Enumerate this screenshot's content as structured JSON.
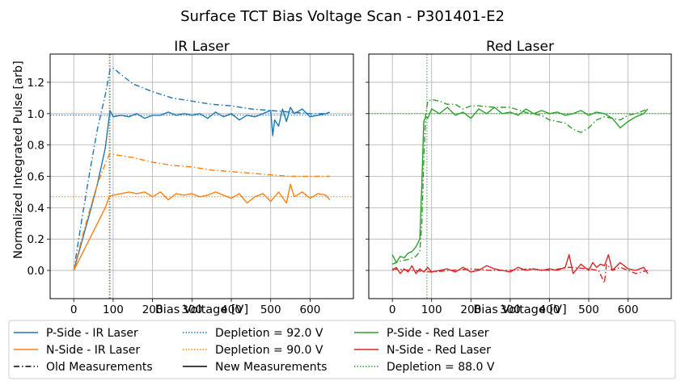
{
  "suptitle": "Surface TCT Bias Voltage Scan - P301401-E2",
  "ylabel": "Normalized Integrated Pulse [arb]",
  "colors": {
    "blue": "#1f77b4",
    "orange": "#ff7f0e",
    "green": "#2ca02c",
    "red": "#d62728",
    "black": "#000000",
    "grid": "#b0b0b0"
  },
  "legend": [
    {
      "label": "P-Side - IR Laser",
      "color": "#1f77b4",
      "style": "solid"
    },
    {
      "label": "N-Side - IR Laser",
      "color": "#ff7f0e",
      "style": "solid"
    },
    {
      "label": "Old Measurements",
      "color": "#000000",
      "style": "dashdot"
    },
    {
      "label": "Depletion = 92.0 V",
      "color": "#1f77b4",
      "style": "dotted"
    },
    {
      "label": "Depletion = 90.0 V",
      "color": "#ff7f0e",
      "style": "dotted"
    },
    {
      "label": "New Measurements",
      "color": "#000000",
      "style": "solid"
    },
    {
      "label": "P-Side - Red Laser",
      "color": "#2ca02c",
      "style": "solid"
    },
    {
      "label": "N-Side - Red Laser",
      "color": "#d62728",
      "style": "solid"
    },
    {
      "label": "Depletion = 88.0 V",
      "color": "#2ca02c",
      "style": "dotted"
    }
  ],
  "chart_data": [
    {
      "type": "line",
      "title": "IR Laser",
      "xlabel": "Bias Voltage [V]",
      "ylabel": "Normalized Integrated Pulse [arb]",
      "xlim": [
        -60,
        710
      ],
      "ylim": [
        -0.18,
        1.38
      ],
      "xticks": [
        0,
        100,
        200,
        300,
        400,
        500,
        600
      ],
      "yticks": [
        0.0,
        0.2,
        0.4,
        0.6,
        0.8,
        1.0,
        1.2
      ],
      "grid": true,
      "vlines": [
        {
          "x": 92,
          "color": "#1f77b4",
          "label": "Depletion = 92.0 V"
        },
        {
          "x": 90,
          "color": "#ff7f0e",
          "label": "Depletion = 90.0 V"
        }
      ],
      "hlines": [
        {
          "y": 0.99,
          "color": "#1f77b4"
        },
        {
          "y": 0.47,
          "color": "#ff7f0e"
        }
      ],
      "series": [
        {
          "name": "P-Side - IR Laser (old)",
          "color": "#1f77b4",
          "style": "dashdot",
          "x": [
            0,
            20,
            40,
            60,
            80,
            92,
            100,
            120,
            150,
            200,
            250,
            300,
            350,
            400,
            450,
            500,
            550,
            600,
            650
          ],
          "y": [
            0.0,
            0.32,
            0.62,
            0.9,
            1.12,
            1.28,
            1.29,
            1.25,
            1.19,
            1.14,
            1.1,
            1.08,
            1.06,
            1.05,
            1.03,
            1.02,
            1.01,
            1.0,
            1.0
          ]
        },
        {
          "name": "P-Side - IR Laser (new)",
          "color": "#1f77b4",
          "style": "solid",
          "x": [
            0,
            20,
            40,
            60,
            80,
            92,
            100,
            120,
            140,
            160,
            180,
            200,
            220,
            240,
            260,
            280,
            300,
            320,
            340,
            360,
            380,
            400,
            420,
            440,
            460,
            480,
            500,
            505,
            510,
            520,
            530,
            540,
            550,
            560,
            580,
            600,
            620,
            640,
            650
          ],
          "y": [
            0.0,
            0.18,
            0.36,
            0.55,
            0.78,
            1.02,
            0.98,
            0.99,
            0.98,
            1.0,
            0.97,
            0.99,
            0.99,
            1.01,
            0.99,
            1.0,
            0.99,
            1.0,
            0.97,
            1.01,
            0.98,
            1.0,
            0.96,
            0.99,
            0.98,
            1.0,
            1.02,
            0.86,
            0.96,
            0.92,
            1.03,
            0.95,
            1.04,
            1.0,
            1.03,
            0.98,
            0.99,
            1.0,
            1.01
          ]
        },
        {
          "name": "N-Side - IR Laser (old)",
          "color": "#ff7f0e",
          "style": "dashdot",
          "x": [
            0,
            20,
            40,
            60,
            80,
            90,
            100,
            150,
            200,
            250,
            300,
            350,
            400,
            450,
            500,
            550,
            600,
            650
          ],
          "y": [
            0.0,
            0.2,
            0.38,
            0.55,
            0.68,
            0.74,
            0.74,
            0.72,
            0.69,
            0.67,
            0.66,
            0.64,
            0.63,
            0.62,
            0.61,
            0.6,
            0.6,
            0.6
          ]
        },
        {
          "name": "N-Side - IR Laser (new)",
          "color": "#ff7f0e",
          "style": "solid",
          "x": [
            0,
            20,
            40,
            60,
            80,
            90,
            100,
            120,
            140,
            160,
            180,
            200,
            220,
            240,
            260,
            280,
            300,
            320,
            340,
            360,
            380,
            400,
            420,
            440,
            460,
            480,
            500,
            520,
            540,
            550,
            560,
            580,
            600,
            620,
            640,
            650
          ],
          "y": [
            0.0,
            0.1,
            0.2,
            0.3,
            0.4,
            0.47,
            0.48,
            0.49,
            0.5,
            0.49,
            0.5,
            0.47,
            0.5,
            0.45,
            0.49,
            0.48,
            0.49,
            0.47,
            0.48,
            0.5,
            0.48,
            0.46,
            0.49,
            0.43,
            0.47,
            0.49,
            0.44,
            0.5,
            0.43,
            0.55,
            0.47,
            0.5,
            0.46,
            0.49,
            0.48,
            0.45
          ]
        }
      ]
    },
    {
      "type": "line",
      "title": "Red Laser",
      "xlabel": "Bias Voltage [V]",
      "ylabel": "",
      "xlim": [
        -60,
        710
      ],
      "ylim": [
        -0.18,
        1.38
      ],
      "xticks": [
        0,
        100,
        200,
        300,
        400,
        500,
        600
      ],
      "yticks": [
        0.0,
        0.2,
        0.4,
        0.6,
        0.8,
        1.0,
        1.2
      ],
      "grid": true,
      "vlines": [
        {
          "x": 88,
          "color": "#2ca02c",
          "label": "Depletion = 88.0 V"
        }
      ],
      "hlines": [
        {
          "y": 1.0,
          "color": "#2ca02c"
        }
      ],
      "series": [
        {
          "name": "P-Side - Red Laser (old)",
          "color": "#2ca02c",
          "style": "dashdot",
          "x": [
            0,
            20,
            40,
            60,
            70,
            75,
            80,
            85,
            90,
            100,
            120,
            140,
            160,
            180,
            200,
            220,
            260,
            300,
            350,
            380,
            400,
            420,
            440,
            460,
            480,
            500,
            520,
            540,
            560,
            580,
            600,
            620,
            650
          ],
          "y": [
            0.04,
            0.06,
            0.07,
            0.09,
            0.12,
            0.3,
            0.7,
            1.0,
            1.08,
            1.09,
            1.08,
            1.06,
            1.06,
            1.03,
            1.05,
            1.05,
            1.04,
            1.04,
            1.0,
            0.99,
            0.96,
            0.95,
            0.94,
            0.9,
            0.88,
            0.91,
            0.96,
            0.98,
            0.97,
            0.96,
            0.99,
            1.0,
            1.03
          ]
        },
        {
          "name": "P-Side - Red Laser (new)",
          "color": "#2ca02c",
          "style": "solid",
          "x": [
            0,
            10,
            20,
            30,
            40,
            50,
            60,
            70,
            75,
            80,
            85,
            90,
            100,
            120,
            140,
            160,
            180,
            200,
            220,
            240,
            260,
            280,
            300,
            320,
            340,
            360,
            380,
            400,
            420,
            440,
            460,
            480,
            500,
            520,
            540,
            560,
            580,
            600,
            620,
            640,
            650
          ],
          "y": [
            0.1,
            0.05,
            0.09,
            0.08,
            0.11,
            0.12,
            0.15,
            0.2,
            0.55,
            0.95,
            0.98,
            0.97,
            1.03,
            1.0,
            1.04,
            0.99,
            1.01,
            0.97,
            1.03,
            1.0,
            1.04,
            1.0,
            1.01,
            0.99,
            1.03,
            1.0,
            1.02,
            1.0,
            1.01,
            0.99,
            1.0,
            1.02,
            0.99,
            1.01,
            1.0,
            0.97,
            0.91,
            0.95,
            0.98,
            1.0,
            1.03
          ]
        },
        {
          "name": "N-Side - Red Laser (old)",
          "color": "#d62728",
          "style": "dashdot",
          "x": [
            0,
            50,
            100,
            150,
            200,
            250,
            300,
            350,
            400,
            450,
            500,
            525,
            540,
            545,
            560,
            580,
            600,
            620,
            650
          ],
          "y": [
            0.01,
            0.0,
            -0.01,
            0.0,
            0.01,
            0.0,
            0.0,
            0.01,
            0.0,
            0.02,
            0.01,
            0.0,
            -0.08,
            0.04,
            0.0,
            0.02,
            0.0,
            -0.02,
            0.0
          ]
        },
        {
          "name": "N-Side - Red Laser (new)",
          "color": "#d62728",
          "style": "solid",
          "x": [
            0,
            10,
            20,
            30,
            40,
            50,
            60,
            70,
            80,
            90,
            100,
            120,
            140,
            160,
            180,
            200,
            220,
            240,
            260,
            280,
            300,
            320,
            340,
            360,
            380,
            400,
            420,
            440,
            450,
            460,
            480,
            500,
            510,
            520,
            530,
            540,
            550,
            560,
            580,
            600,
            620,
            640,
            650
          ],
          "y": [
            0.0,
            0.02,
            -0.02,
            0.01,
            -0.01,
            0.03,
            -0.02,
            0.01,
            -0.01,
            0.02,
            -0.01,
            0.0,
            0.01,
            -0.01,
            0.02,
            -0.01,
            0.0,
            0.03,
            0.01,
            0.0,
            -0.01,
            0.02,
            0.0,
            0.01,
            0.0,
            0.01,
            0.0,
            0.02,
            0.1,
            -0.02,
            0.04,
            0.0,
            0.05,
            0.02,
            0.04,
            0.03,
            0.1,
            0.0,
            0.05,
            0.01,
            0.0,
            0.02,
            -0.02
          ]
        }
      ]
    }
  ]
}
